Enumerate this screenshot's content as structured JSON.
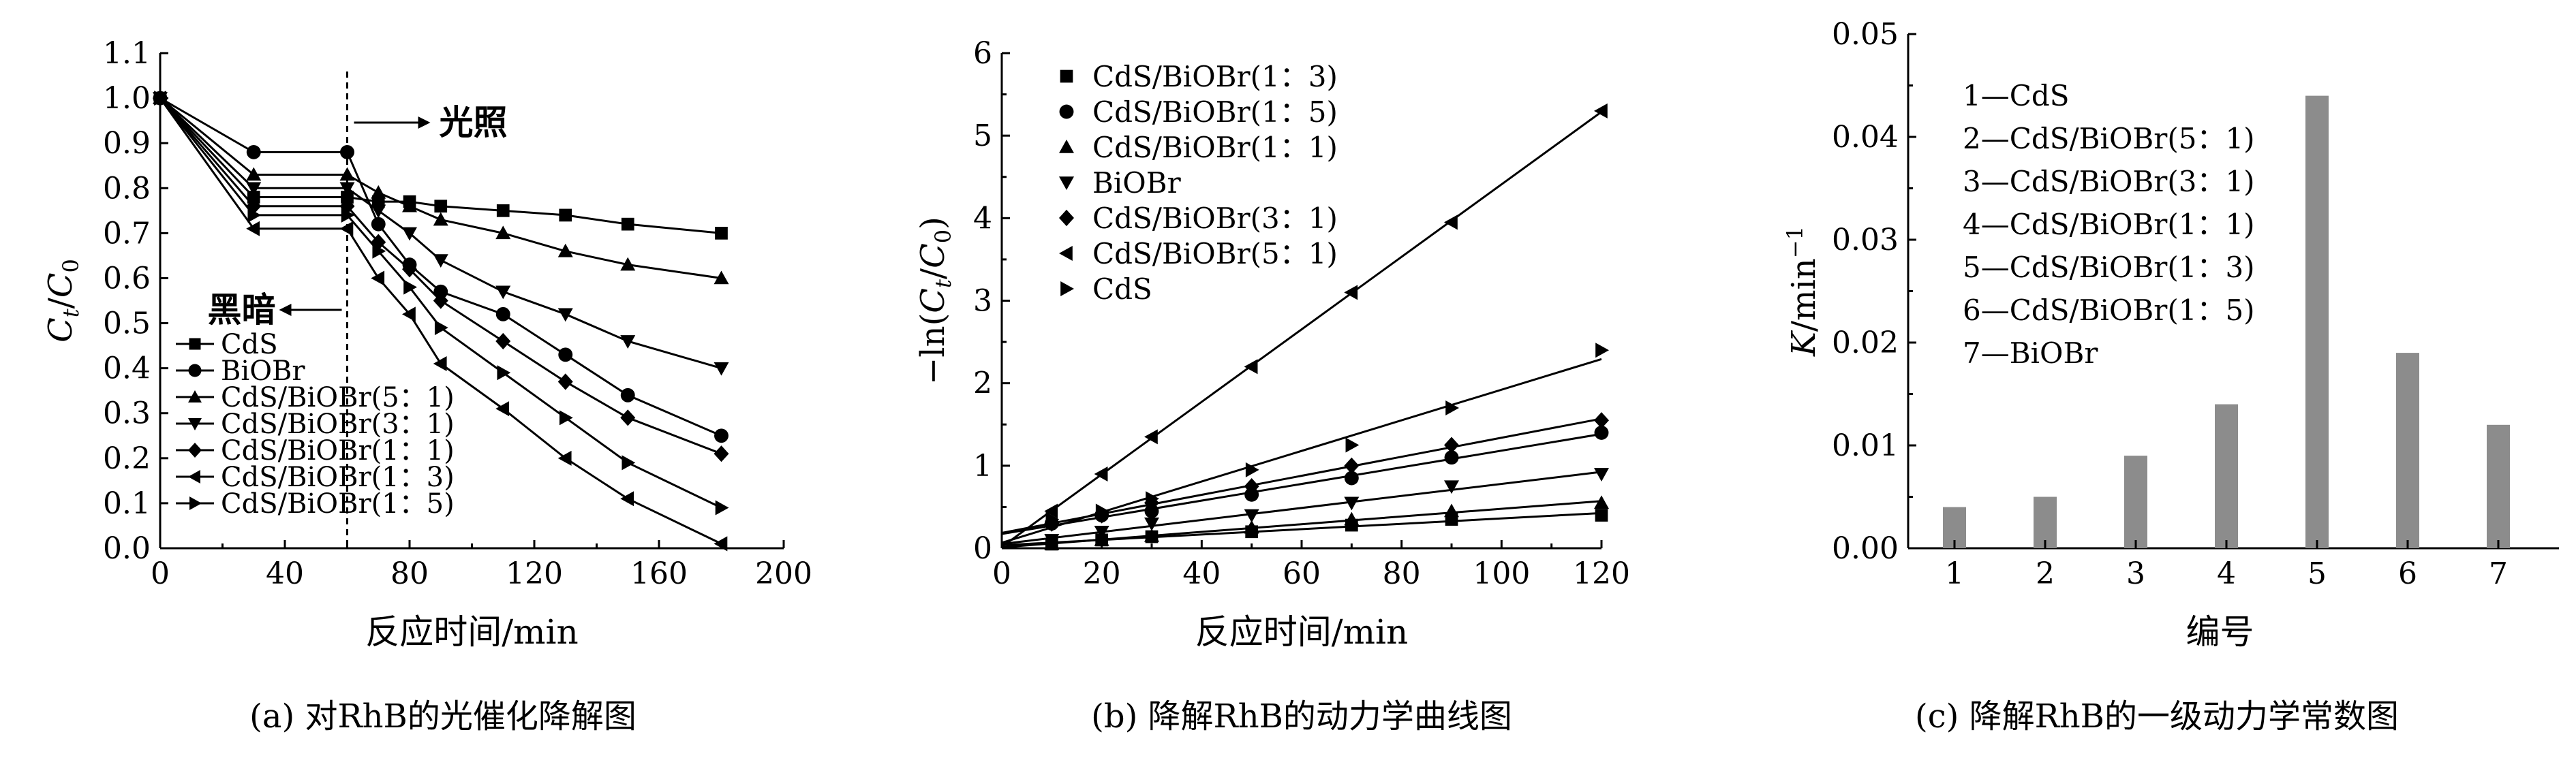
{
  "panels": [
    {
      "caption": "(a) 对RhB的光催化降解图",
      "chart_data": {
        "type": "line",
        "xlabel": "反应时间/min",
        "ylabel_main": "C",
        "ylabel_sub1": "t",
        "ylabel_sep": "/",
        "ylabel_main2": "C",
        "ylabel_sub2": "0",
        "xlim": [
          0,
          200
        ],
        "ylim": [
          0,
          1.1
        ],
        "xticks": [
          "0",
          "40",
          "80",
          "120",
          "160",
          "200"
        ],
        "yticks": [
          "0.0",
          "0.1",
          "0.2",
          "0.3",
          "0.4",
          "0.5",
          "0.6",
          "0.7",
          "0.8",
          "0.9",
          "1.0",
          "1.1"
        ],
        "annotations": {
          "light_on": "光照",
          "dark": "黑暗"
        },
        "legend_placement": "bottom-left",
        "series": [
          {
            "name": "CdS",
            "marker": "square",
            "x": [
              0,
              30,
              60,
              70,
              80,
              90,
              110,
              130,
              150,
              180
            ],
            "y": [
              1.0,
              0.78,
              0.78,
              0.77,
              0.77,
              0.76,
              0.75,
              0.74,
              0.72,
              0.7
            ]
          },
          {
            "name": "BiOBr",
            "marker": "circle",
            "x": [
              0,
              30,
              60,
              70,
              80,
              90,
              110,
              130,
              150,
              180
            ],
            "y": [
              1.0,
              0.88,
              0.88,
              0.72,
              0.63,
              0.57,
              0.52,
              0.43,
              0.34,
              0.25
            ]
          },
          {
            "name": "CdS/BiOBr(5：1)",
            "marker": "triangle-up",
            "x": [
              0,
              30,
              60,
              70,
              80,
              90,
              110,
              130,
              150,
              180
            ],
            "y": [
              1.0,
              0.83,
              0.83,
              0.79,
              0.76,
              0.73,
              0.7,
              0.66,
              0.63,
              0.6
            ]
          },
          {
            "name": "CdS/BiOBr(3：1)",
            "marker": "triangle-down",
            "x": [
              0,
              30,
              60,
              70,
              80,
              90,
              110,
              130,
              150,
              180
            ],
            "y": [
              1.0,
              0.8,
              0.8,
              0.75,
              0.7,
              0.64,
              0.57,
              0.52,
              0.46,
              0.4
            ]
          },
          {
            "name": "CdS/BiOBr(1：1)",
            "marker": "diamond",
            "x": [
              0,
              30,
              60,
              70,
              80,
              90,
              110,
              130,
              150,
              180
            ],
            "y": [
              1.0,
              0.76,
              0.76,
              0.68,
              0.62,
              0.55,
              0.46,
              0.37,
              0.29,
              0.21
            ]
          },
          {
            "name": "CdS/BiOBr(1：3)",
            "marker": "triangle-left",
            "x": [
              0,
              30,
              60,
              70,
              80,
              90,
              110,
              130,
              150,
              180
            ],
            "y": [
              1.0,
              0.71,
              0.71,
              0.6,
              0.52,
              0.41,
              0.31,
              0.2,
              0.11,
              0.01
            ]
          },
          {
            "name": "CdS/BiOBr(1：5)",
            "marker": "triangle-right",
            "x": [
              0,
              30,
              60,
              70,
              80,
              90,
              110,
              130,
              150,
              180
            ],
            "y": [
              1.0,
              0.74,
              0.74,
              0.66,
              0.58,
              0.49,
              0.39,
              0.29,
              0.19,
              0.09
            ]
          }
        ]
      }
    },
    {
      "caption": "(b) 降解RhB的动力学曲线图",
      "chart_data": {
        "type": "scatter",
        "xlabel": "反应时间/min",
        "ylabel_prefix": "−ln(",
        "ylabel_main": "C",
        "ylabel_sub1": "t",
        "ylabel_sep": "/",
        "ylabel_main2": "C",
        "ylabel_sub2": "0",
        "ylabel_suffix": ")",
        "xlim": [
          0,
          120
        ],
        "ylim": [
          0,
          6
        ],
        "xticks": [
          "0",
          "20",
          "40",
          "60",
          "80",
          "100",
          "120"
        ],
        "yticks": [
          "0",
          "1",
          "2",
          "3",
          "4",
          "5",
          "6"
        ],
        "legend_placement": "top-left",
        "fit_lines": true,
        "series": [
          {
            "name": "CdS/BiOBr(1：3)",
            "marker": "square",
            "x": [
              10,
              20,
              30,
              50,
              70,
              90,
              120
            ],
            "y": [
              0.05,
              0.1,
              0.14,
              0.2,
              0.28,
              0.35,
              0.4
            ]
          },
          {
            "name": "CdS/BiOBr(1：5)",
            "marker": "circle",
            "x": [
              10,
              20,
              30,
              50,
              70,
              90,
              120
            ],
            "y": [
              0.3,
              0.4,
              0.45,
              0.65,
              0.85,
              1.1,
              1.4
            ]
          },
          {
            "name": "CdS/BiOBr(1：1)",
            "marker": "triangle-up",
            "x": [
              10,
              20,
              30,
              50,
              70,
              90,
              120
            ],
            "y": [
              0.05,
              0.1,
              0.15,
              0.25,
              0.35,
              0.45,
              0.55
            ]
          },
          {
            "name": "BiOBr",
            "marker": "triangle-down",
            "x": [
              10,
              20,
              30,
              50,
              70,
              90,
              120
            ],
            "y": [
              0.1,
              0.2,
              0.3,
              0.4,
              0.55,
              0.75,
              0.9
            ]
          },
          {
            "name": "CdS/BiOBr(3：1)",
            "marker": "diamond",
            "x": [
              10,
              20,
              30,
              50,
              70,
              90,
              120
            ],
            "y": [
              0.3,
              0.4,
              0.55,
              0.75,
              1.0,
              1.25,
              1.55
            ]
          },
          {
            "name": "CdS/BiOBr(5：1)",
            "marker": "triangle-left",
            "x": [
              10,
              20,
              30,
              50,
              70,
              90,
              120
            ],
            "y": [
              0.45,
              0.9,
              1.35,
              2.2,
              3.1,
              3.95,
              5.3
            ]
          },
          {
            "name": "CdS",
            "marker": "triangle-right",
            "x": [
              10,
              20,
              30,
              50,
              70,
              90,
              120
            ],
            "y": [
              0.35,
              0.45,
              0.6,
              0.95,
              1.25,
              1.7,
              2.4
            ]
          }
        ]
      }
    },
    {
      "caption": "(c) 降解RhB的一级动力学常数图",
      "chart_data": {
        "type": "bar",
        "xlabel": "编号",
        "ylabel_main": "K",
        "ylabel_unit": "/min",
        "ylabel_sup": "−1",
        "categories": [
          "1",
          "2",
          "3",
          "4",
          "5",
          "6",
          "7"
        ],
        "values": [
          0.004,
          0.005,
          0.009,
          0.014,
          0.044,
          0.019,
          0.012
        ],
        "ylim": [
          0,
          0.05
        ],
        "yticks": [
          "0.00",
          "0.01",
          "0.02",
          "0.03",
          "0.04",
          "0.05"
        ],
        "bar_color": "#8c8c8c",
        "legend_placement": "top-left",
        "legend": [
          "1—CdS",
          "2—CdS/BiOBr(5：1)",
          "3—CdS/BiOBr(3：1)",
          "4—CdS/BiOBr(1：1)",
          "5—CdS/BiOBr(1：3)",
          "6—CdS/BiOBr(1：5)",
          "7—BiOBr"
        ]
      }
    }
  ]
}
